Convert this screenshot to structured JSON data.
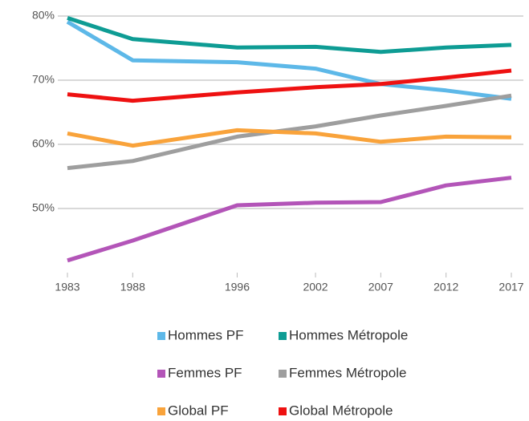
{
  "chart_data": {
    "type": "line",
    "x": [
      1983,
      1988,
      1996,
      2002,
      2007,
      2012,
      2017
    ],
    "xlim": [
      1983,
      2017
    ],
    "xticks": [
      1983,
      1988,
      1996,
      2002,
      2007,
      2012,
      2017
    ],
    "ylim": [
      40,
      80
    ],
    "yticks": [
      {
        "value": 50,
        "label": "50%"
      },
      {
        "value": 60,
        "label": "60%"
      },
      {
        "value": 70,
        "label": "70%"
      },
      {
        "value": 80,
        "label": "80%"
      }
    ],
    "grid": true,
    "series": [
      {
        "name": "Hommes PF",
        "color": "#5db8e8",
        "values": [
          79.1,
          73.1,
          72.8,
          71.8,
          69.4,
          68.4,
          67.1
        ]
      },
      {
        "name": "Hommes Métropole",
        "color": "#0e9c94",
        "values": [
          79.7,
          76.4,
          75.1,
          75.2,
          74.4,
          75.1,
          75.5
        ]
      },
      {
        "name": "Femmes PF",
        "color": "#b355b8",
        "values": [
          41.9,
          45.0,
          50.5,
          50.9,
          51.0,
          53.6,
          54.8
        ]
      },
      {
        "name": "Femmes Métropole",
        "color": "#9e9e9e",
        "values": [
          56.3,
          57.4,
          61.2,
          62.8,
          64.5,
          66.0,
          67.6
        ]
      },
      {
        "name": "Global PF",
        "color": "#f9a33b",
        "values": [
          61.7,
          59.8,
          62.2,
          61.7,
          60.4,
          61.2,
          61.1
        ]
      },
      {
        "name": "Global Métropole",
        "color": "#ee1111",
        "values": [
          67.8,
          66.8,
          68.1,
          68.9,
          69.4,
          70.4,
          71.5
        ]
      }
    ]
  }
}
